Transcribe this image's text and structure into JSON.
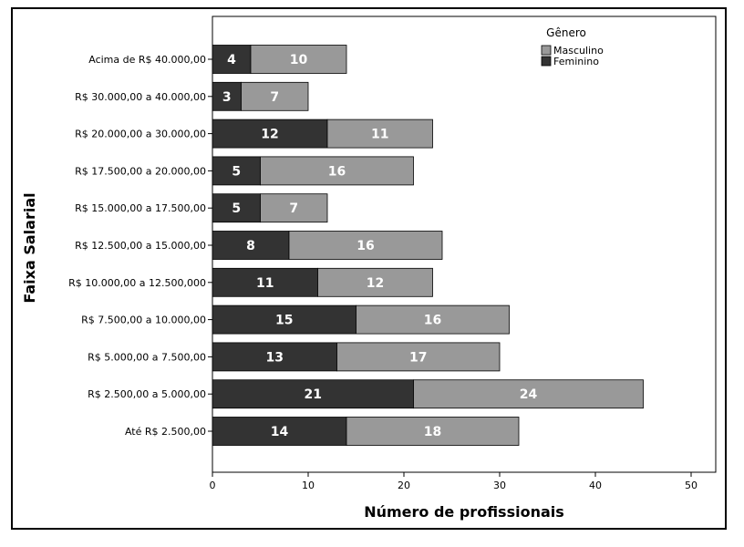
{
  "chart_data": {
    "type": "bar",
    "orientation": "horizontal",
    "stacked": true,
    "categories": [
      "Acima de R$ 40.000,00",
      "R$ 30.000,00 a 40.000,00",
      "R$ 20.000,00 a 30.000,00",
      "R$ 17.500,00 a 20.000,00",
      "R$ 15.000,00 a 17.500,00",
      "R$ 12.500,00 a 15.000,00",
      "R$ 10.000,00 a 12.500,000",
      "R$ 7.500,00 a 10.000,00",
      "R$ 5.000,00 a 7.500,00",
      "R$ 2.500,00 a 5.000,00",
      "Até R$ 2.500,00"
    ],
    "series": [
      {
        "name": "Feminino",
        "color": "#333333",
        "values": [
          4,
          3,
          12,
          5,
          5,
          8,
          11,
          15,
          13,
          21,
          14
        ]
      },
      {
        "name": "Masculino",
        "color": "#999999",
        "values": [
          10,
          7,
          11,
          16,
          7,
          16,
          12,
          16,
          17,
          24,
          18
        ]
      }
    ],
    "xlabel": "Número de profissionais",
    "ylabel": "Faixa Salarial",
    "xlim": [
      0,
      52
    ],
    "xticks": [
      0,
      10,
      20,
      30,
      40,
      50
    ],
    "legend": {
      "title": "Gênero",
      "placement": "top-right",
      "entries": [
        "Masculino",
        "Feminino"
      ]
    },
    "grid": false
  }
}
